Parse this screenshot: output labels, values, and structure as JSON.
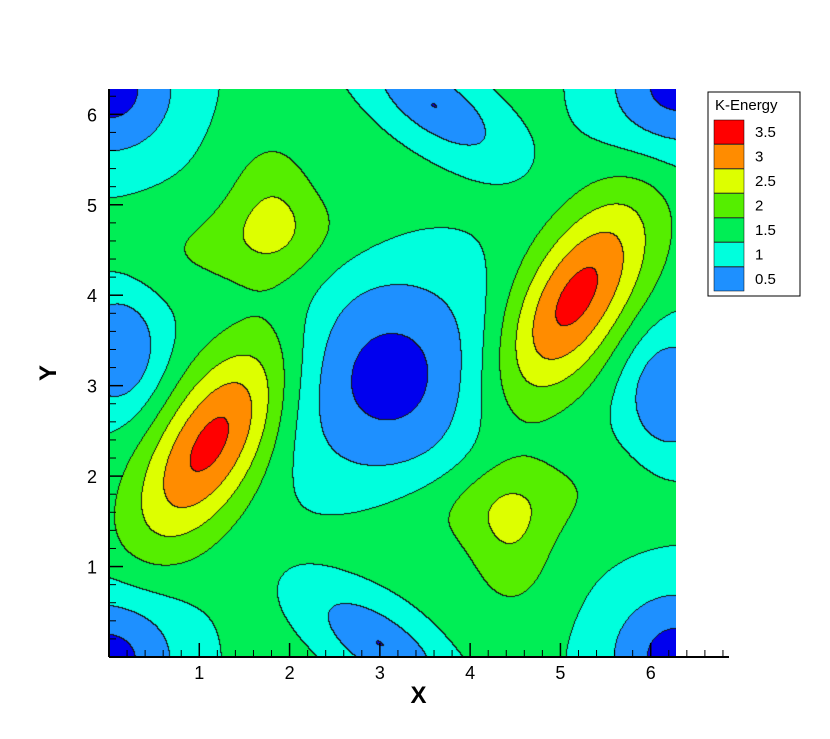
{
  "chart_data": {
    "type": "heatmap",
    "subtype": "filled-contour",
    "xlabel": "X",
    "ylabel": "Y",
    "xlim": [
      0,
      6.98
    ],
    "ylim": [
      0,
      6.28
    ],
    "field_extent": {
      "x": [
        0,
        6.28
      ],
      "y": [
        0,
        6.28
      ]
    },
    "xticks": [
      1,
      2,
      3,
      4,
      5,
      6
    ],
    "yticks": [
      1,
      2,
      3,
      4,
      5,
      6
    ],
    "grid": false,
    "legend": {
      "title": "K-Energy",
      "placement": "top-right",
      "levels": [
        {
          "label": "3.5",
          "color": "#ff0000"
        },
        {
          "label": "3",
          "color": "#ff8c00"
        },
        {
          "label": "2.5",
          "color": "#ddff00"
        },
        {
          "label": "2",
          "color": "#55ee00"
        },
        {
          "label": "1.5",
          "color": "#00ee55"
        },
        {
          "label": "1",
          "color": "#00ffdd"
        },
        {
          "label": "0.5",
          "color": "#1e90ff"
        }
      ],
      "lowest_color": "#0000ee"
    },
    "features": [
      {
        "kind": "maximum",
        "x": 1.15,
        "y": 2.4,
        "value": 3.7
      },
      {
        "kind": "maximum",
        "x": 5.15,
        "y": 3.95,
        "value": 3.7
      },
      {
        "kind": "minimum",
        "x": 3.1,
        "y": 3.1,
        "value": 0.3
      },
      {
        "kind": "saddle-peak",
        "x": 1.8,
        "y": 5.0,
        "value": 2.3
      },
      {
        "kind": "saddle-peak",
        "x": 4.45,
        "y": 1.25,
        "value": 2.3
      }
    ]
  }
}
